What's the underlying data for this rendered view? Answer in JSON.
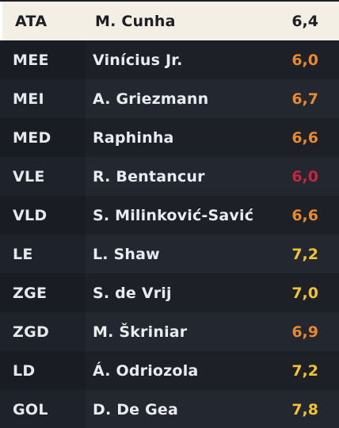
{
  "lineup": [
    {
      "position": "ATA",
      "player": "M. Cunha",
      "rating": "6,4",
      "rating_color": "#1d1f24",
      "selected": true
    },
    {
      "position": "MEE",
      "player": "Vinícius Jr.",
      "rating": "6,0",
      "rating_color": "#e8892d",
      "selected": false
    },
    {
      "position": "MEI",
      "player": "A. Griezmann",
      "rating": "6,7",
      "rating_color": "#e8892d",
      "selected": false
    },
    {
      "position": "MED",
      "player": "Raphinha",
      "rating": "6,6",
      "rating_color": "#e8892d",
      "selected": false
    },
    {
      "position": "VLE",
      "player": "R. Bentancur",
      "rating": "6,0",
      "rating_color": "#c5263c",
      "selected": false
    },
    {
      "position": "VLD",
      "player": "S. Milinković-Savić",
      "rating": "6,6",
      "rating_color": "#e8892d",
      "selected": false
    },
    {
      "position": "LE",
      "player": "L. Shaw",
      "rating": "7,2",
      "rating_color": "#f2c230",
      "selected": false
    },
    {
      "position": "ZGE",
      "player": "S. de Vrij",
      "rating": "7,0",
      "rating_color": "#f2c230",
      "selected": false
    },
    {
      "position": "ZGD",
      "player": "M. Škriniar",
      "rating": "6,9",
      "rating_color": "#e8892d",
      "selected": false
    },
    {
      "position": "LD",
      "player": "Á. Odriozola",
      "rating": "7,2",
      "rating_color": "#f2c230",
      "selected": false
    },
    {
      "position": "GOL",
      "player": "D. De Gea",
      "rating": "7,8",
      "rating_color": "#f2c230",
      "selected": false
    }
  ]
}
